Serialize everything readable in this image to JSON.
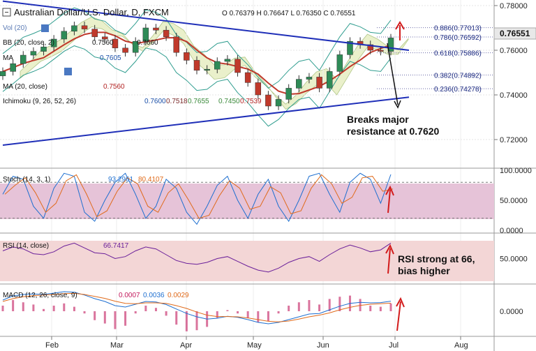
{
  "chart_data": {
    "type": "candlestick",
    "title": "Australian Dollar/U.S. Dollar, D, FXCM",
    "ohlc": {
      "O": "0.76379",
      "H": "0.76647",
      "L": "0.76350",
      "C": "0.76551"
    },
    "last_price": "0.76551",
    "x_ticks": [
      "Feb",
      "Mar",
      "Apr",
      "May",
      "Jun",
      "Jul",
      "Aug"
    ],
    "price_ticks": [
      0.78,
      0.76,
      0.74,
      0.72
    ],
    "price_tick_labels": [
      "0.78000",
      "0.76000",
      "0.74000",
      "0.72000"
    ],
    "ylim": [
      0.7075,
      0.7825
    ],
    "indicators": {
      "vol": "Vol (20)",
      "bb": "BB (20, close, 2)",
      "bb_vals": [
        "0.7560",
        "0.7605",
        "0.7660"
      ],
      "ma1": "MA",
      "ma2": "MA (20, close)",
      "ma2_val": "0.7560",
      "ichimoku": "Ichimoku (9, 26, 52, 26)",
      "ichimoku_vals": [
        "0.7600",
        "0.7518",
        "0.7655",
        "0.7450",
        "0.7539"
      ]
    },
    "fib_levels": [
      {
        "label": "0.886(0.77013)",
        "value": 0.77013
      },
      {
        "label": "0.786(0.76592)",
        "value": 0.76592
      },
      {
        "label": "0.618(0.75886)",
        "value": 0.75886
      },
      {
        "label": "0.382(0.74892)",
        "value": 0.74892
      },
      {
        "label": "0.236(0.74278)",
        "value": 0.74278
      }
    ],
    "annotations": {
      "breakout": [
        "Breaks major",
        "resistance at 0.7620"
      ],
      "rsi": [
        "RSI strong at 66,",
        "bias higher"
      ]
    },
    "trendlines": [
      {
        "name": "resistance",
        "from": {
          "t": 0.0,
          "p": 0.782
        },
        "to": {
          "t": 0.7,
          "p": 0.76
        }
      },
      {
        "name": "support",
        "from": {
          "t": 0.0,
          "p": 0.7175
        },
        "to": {
          "t": 0.7,
          "p": 0.739
        }
      }
    ],
    "close_path": [
      0.7505,
      0.754,
      0.7578,
      0.7595,
      0.7615,
      0.765,
      0.7685,
      0.771,
      0.7695,
      0.766,
      0.765,
      0.761,
      0.759,
      0.764,
      0.77,
      0.769,
      0.766,
      0.759,
      0.7555,
      0.751,
      0.7515,
      0.755,
      0.756,
      0.75,
      0.7455,
      0.74,
      0.735,
      0.738,
      0.743,
      0.747,
      0.748,
      0.743,
      0.7505,
      0.758,
      0.764,
      0.7625,
      0.76,
      0.7595,
      0.7655
    ],
    "stoch": {
      "label": "Stoch (14, 3, 1)",
      "k": "93.2961",
      "d": "80.4107",
      "ticks": [
        "100.0000",
        "50.0000",
        "0.0000"
      ],
      "k_series": [
        60,
        90,
        85,
        40,
        20,
        70,
        95,
        90,
        30,
        15,
        50,
        80,
        95,
        60,
        20,
        40,
        85,
        70,
        30,
        10,
        40,
        75,
        90,
        50,
        20,
        60,
        85,
        40,
        15,
        50,
        90,
        95,
        60,
        30,
        80,
        95,
        85,
        45,
        93
      ]
    },
    "rsi": {
      "label": "RSI (14, close)",
      "value": "66.7417",
      "ticks": [
        "50.0000"
      ],
      "series": [
        58,
        62,
        60,
        55,
        54,
        57,
        63,
        66,
        61,
        56,
        55,
        50,
        52,
        58,
        62,
        60,
        54,
        48,
        45,
        44,
        46,
        50,
        52,
        47,
        42,
        38,
        36,
        40,
        46,
        50,
        52,
        47,
        54,
        60,
        64,
        61,
        57,
        59,
        66
      ]
    },
    "macd": {
      "label": "MACD (12, 26, close, 9)",
      "vals": [
        "0.0007",
        "0.0036",
        "0.0029"
      ],
      "ticks": [
        "0.0000"
      ],
      "macd": [
        0.004,
        0.0055,
        0.006,
        0.0062,
        0.006,
        0.0065,
        0.007,
        0.0068,
        0.0058,
        0.0045,
        0.0035,
        0.002,
        0.0015,
        0.0025,
        0.0035,
        0.0033,
        0.0024,
        0.0008,
        -0.0008,
        -0.002,
        -0.0028,
        -0.0025,
        -0.0018,
        -0.0022,
        -0.003,
        -0.004,
        -0.0045,
        -0.004,
        -0.003,
        -0.002,
        -0.001,
        -0.0008,
        0.0005,
        0.0018,
        0.0028,
        0.0032,
        0.003,
        0.0031,
        0.0036
      ],
      "signal": [
        0.0035,
        0.0045,
        0.0052,
        0.0056,
        0.0058,
        0.006,
        0.0063,
        0.0064,
        0.006,
        0.0053,
        0.0046,
        0.0036,
        0.0028,
        0.0027,
        0.003,
        0.003,
        0.0028,
        0.002,
        0.001,
        -0.0003,
        -0.0014,
        -0.0019,
        -0.0019,
        -0.002,
        -0.0024,
        -0.003,
        -0.0036,
        -0.0038,
        -0.0035,
        -0.0028,
        -0.002,
        -0.0014,
        -0.0006,
        0.0005,
        0.0014,
        0.0021,
        0.0025,
        0.0027,
        0.0029
      ]
    }
  }
}
